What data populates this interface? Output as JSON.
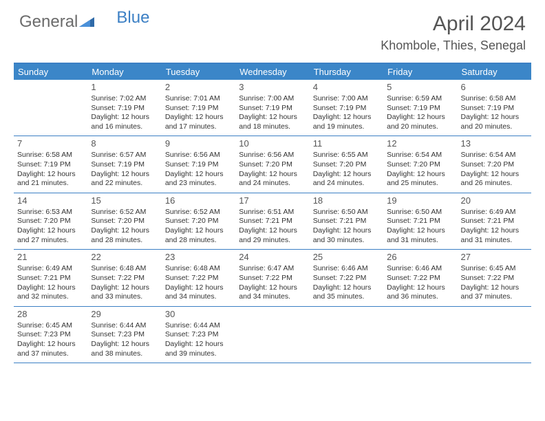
{
  "logo": {
    "part1": "General",
    "part2": "Blue"
  },
  "title": "April 2024",
  "location": "Khombole, Thies, Senegal",
  "colors": {
    "accent": "#3b86c8",
    "border": "#3b7fc4",
    "text": "#333333",
    "title_text": "#555555",
    "background": "#ffffff"
  },
  "weekdays": [
    "Sunday",
    "Monday",
    "Tuesday",
    "Wednesday",
    "Thursday",
    "Friday",
    "Saturday"
  ],
  "weeks": [
    [
      {
        "day": "",
        "sunrise": "",
        "sunset": "",
        "daylight1": "",
        "daylight2": ""
      },
      {
        "day": "1",
        "sunrise": "Sunrise: 7:02 AM",
        "sunset": "Sunset: 7:19 PM",
        "daylight1": "Daylight: 12 hours",
        "daylight2": "and 16 minutes."
      },
      {
        "day": "2",
        "sunrise": "Sunrise: 7:01 AM",
        "sunset": "Sunset: 7:19 PM",
        "daylight1": "Daylight: 12 hours",
        "daylight2": "and 17 minutes."
      },
      {
        "day": "3",
        "sunrise": "Sunrise: 7:00 AM",
        "sunset": "Sunset: 7:19 PM",
        "daylight1": "Daylight: 12 hours",
        "daylight2": "and 18 minutes."
      },
      {
        "day": "4",
        "sunrise": "Sunrise: 7:00 AM",
        "sunset": "Sunset: 7:19 PM",
        "daylight1": "Daylight: 12 hours",
        "daylight2": "and 19 minutes."
      },
      {
        "day": "5",
        "sunrise": "Sunrise: 6:59 AM",
        "sunset": "Sunset: 7:19 PM",
        "daylight1": "Daylight: 12 hours",
        "daylight2": "and 20 minutes."
      },
      {
        "day": "6",
        "sunrise": "Sunrise: 6:58 AM",
        "sunset": "Sunset: 7:19 PM",
        "daylight1": "Daylight: 12 hours",
        "daylight2": "and 20 minutes."
      }
    ],
    [
      {
        "day": "7",
        "sunrise": "Sunrise: 6:58 AM",
        "sunset": "Sunset: 7:19 PM",
        "daylight1": "Daylight: 12 hours",
        "daylight2": "and 21 minutes."
      },
      {
        "day": "8",
        "sunrise": "Sunrise: 6:57 AM",
        "sunset": "Sunset: 7:19 PM",
        "daylight1": "Daylight: 12 hours",
        "daylight2": "and 22 minutes."
      },
      {
        "day": "9",
        "sunrise": "Sunrise: 6:56 AM",
        "sunset": "Sunset: 7:19 PM",
        "daylight1": "Daylight: 12 hours",
        "daylight2": "and 23 minutes."
      },
      {
        "day": "10",
        "sunrise": "Sunrise: 6:56 AM",
        "sunset": "Sunset: 7:20 PM",
        "daylight1": "Daylight: 12 hours",
        "daylight2": "and 24 minutes."
      },
      {
        "day": "11",
        "sunrise": "Sunrise: 6:55 AM",
        "sunset": "Sunset: 7:20 PM",
        "daylight1": "Daylight: 12 hours",
        "daylight2": "and 24 minutes."
      },
      {
        "day": "12",
        "sunrise": "Sunrise: 6:54 AM",
        "sunset": "Sunset: 7:20 PM",
        "daylight1": "Daylight: 12 hours",
        "daylight2": "and 25 minutes."
      },
      {
        "day": "13",
        "sunrise": "Sunrise: 6:54 AM",
        "sunset": "Sunset: 7:20 PM",
        "daylight1": "Daylight: 12 hours",
        "daylight2": "and 26 minutes."
      }
    ],
    [
      {
        "day": "14",
        "sunrise": "Sunrise: 6:53 AM",
        "sunset": "Sunset: 7:20 PM",
        "daylight1": "Daylight: 12 hours",
        "daylight2": "and 27 minutes."
      },
      {
        "day": "15",
        "sunrise": "Sunrise: 6:52 AM",
        "sunset": "Sunset: 7:20 PM",
        "daylight1": "Daylight: 12 hours",
        "daylight2": "and 28 minutes."
      },
      {
        "day": "16",
        "sunrise": "Sunrise: 6:52 AM",
        "sunset": "Sunset: 7:20 PM",
        "daylight1": "Daylight: 12 hours",
        "daylight2": "and 28 minutes."
      },
      {
        "day": "17",
        "sunrise": "Sunrise: 6:51 AM",
        "sunset": "Sunset: 7:21 PM",
        "daylight1": "Daylight: 12 hours",
        "daylight2": "and 29 minutes."
      },
      {
        "day": "18",
        "sunrise": "Sunrise: 6:50 AM",
        "sunset": "Sunset: 7:21 PM",
        "daylight1": "Daylight: 12 hours",
        "daylight2": "and 30 minutes."
      },
      {
        "day": "19",
        "sunrise": "Sunrise: 6:50 AM",
        "sunset": "Sunset: 7:21 PM",
        "daylight1": "Daylight: 12 hours",
        "daylight2": "and 31 minutes."
      },
      {
        "day": "20",
        "sunrise": "Sunrise: 6:49 AM",
        "sunset": "Sunset: 7:21 PM",
        "daylight1": "Daylight: 12 hours",
        "daylight2": "and 31 minutes."
      }
    ],
    [
      {
        "day": "21",
        "sunrise": "Sunrise: 6:49 AM",
        "sunset": "Sunset: 7:21 PM",
        "daylight1": "Daylight: 12 hours",
        "daylight2": "and 32 minutes."
      },
      {
        "day": "22",
        "sunrise": "Sunrise: 6:48 AM",
        "sunset": "Sunset: 7:22 PM",
        "daylight1": "Daylight: 12 hours",
        "daylight2": "and 33 minutes."
      },
      {
        "day": "23",
        "sunrise": "Sunrise: 6:48 AM",
        "sunset": "Sunset: 7:22 PM",
        "daylight1": "Daylight: 12 hours",
        "daylight2": "and 34 minutes."
      },
      {
        "day": "24",
        "sunrise": "Sunrise: 6:47 AM",
        "sunset": "Sunset: 7:22 PM",
        "daylight1": "Daylight: 12 hours",
        "daylight2": "and 34 minutes."
      },
      {
        "day": "25",
        "sunrise": "Sunrise: 6:46 AM",
        "sunset": "Sunset: 7:22 PM",
        "daylight1": "Daylight: 12 hours",
        "daylight2": "and 35 minutes."
      },
      {
        "day": "26",
        "sunrise": "Sunrise: 6:46 AM",
        "sunset": "Sunset: 7:22 PM",
        "daylight1": "Daylight: 12 hours",
        "daylight2": "and 36 minutes."
      },
      {
        "day": "27",
        "sunrise": "Sunrise: 6:45 AM",
        "sunset": "Sunset: 7:22 PM",
        "daylight1": "Daylight: 12 hours",
        "daylight2": "and 37 minutes."
      }
    ],
    [
      {
        "day": "28",
        "sunrise": "Sunrise: 6:45 AM",
        "sunset": "Sunset: 7:23 PM",
        "daylight1": "Daylight: 12 hours",
        "daylight2": "and 37 minutes."
      },
      {
        "day": "29",
        "sunrise": "Sunrise: 6:44 AM",
        "sunset": "Sunset: 7:23 PM",
        "daylight1": "Daylight: 12 hours",
        "daylight2": "and 38 minutes."
      },
      {
        "day": "30",
        "sunrise": "Sunrise: 6:44 AM",
        "sunset": "Sunset: 7:23 PM",
        "daylight1": "Daylight: 12 hours",
        "daylight2": "and 39 minutes."
      },
      {
        "day": "",
        "sunrise": "",
        "sunset": "",
        "daylight1": "",
        "daylight2": ""
      },
      {
        "day": "",
        "sunrise": "",
        "sunset": "",
        "daylight1": "",
        "daylight2": ""
      },
      {
        "day": "",
        "sunrise": "",
        "sunset": "",
        "daylight1": "",
        "daylight2": ""
      },
      {
        "day": "",
        "sunrise": "",
        "sunset": "",
        "daylight1": "",
        "daylight2": ""
      }
    ]
  ]
}
